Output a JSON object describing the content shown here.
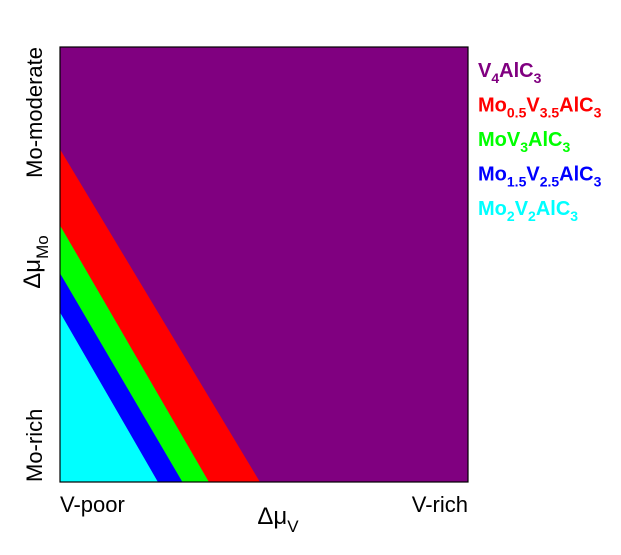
{
  "chart_data": {
    "type": "area",
    "x_axis": {
      "label": "Δμ",
      "label_subscript": "V",
      "range": [
        0,
        1
      ],
      "tick_labels": [
        "V-poor",
        "V-rich"
      ]
    },
    "y_axis": {
      "label": "Δμ",
      "label_subscript": "Mo",
      "range": [
        0,
        1
      ],
      "tick_labels": [
        "Mo-rich",
        "Mo-moderate"
      ]
    },
    "grid": false,
    "legend_position": "right",
    "background_phase": "V4AlC3",
    "series": [
      {
        "name": "V4AlC3",
        "color": "#800080",
        "label_parts": [
          {
            "t": "V",
            "sub": false
          },
          {
            "t": "4",
            "sub": true
          },
          {
            "t": "AlC",
            "sub": false
          },
          {
            "t": "3",
            "sub": true
          }
        ],
        "boundary": null
      },
      {
        "name": "Mo0.5V3.5AlC3",
        "color": "#ff0000",
        "label_parts": [
          {
            "t": "Mo",
            "sub": false
          },
          {
            "t": "0.5",
            "sub": true
          },
          {
            "t": "V",
            "sub": false
          },
          {
            "t": "3.5",
            "sub": true
          },
          {
            "t": "AlC",
            "sub": false
          },
          {
            "t": "3",
            "sub": true
          }
        ],
        "boundary": {
          "y_at_x0": 0.765,
          "x_at_y0": 0.49
        }
      },
      {
        "name": "MoV3AlC3",
        "color": "#00ff00",
        "label_parts": [
          {
            "t": "MoV",
            "sub": false
          },
          {
            "t": "3",
            "sub": true
          },
          {
            "t": "AlC",
            "sub": false
          },
          {
            "t": "3",
            "sub": true
          }
        ],
        "boundary": {
          "y_at_x0": 0.59,
          "x_at_y0": 0.365
        }
      },
      {
        "name": "Mo1.5V2.5AlC3",
        "color": "#0000ff",
        "label_parts": [
          {
            "t": "Mo",
            "sub": false
          },
          {
            "t": "1.5",
            "sub": true
          },
          {
            "t": "V",
            "sub": false
          },
          {
            "t": "2.5",
            "sub": true
          },
          {
            "t": "AlC",
            "sub": false
          },
          {
            "t": "3",
            "sub": true
          }
        ],
        "boundary": {
          "y_at_x0": 0.48,
          "x_at_y0": 0.3
        }
      },
      {
        "name": "Mo2V2AlC3",
        "color": "#00ffff",
        "label_parts": [
          {
            "t": "Mo",
            "sub": false
          },
          {
            "t": "2",
            "sub": true
          },
          {
            "t": "V",
            "sub": false
          },
          {
            "t": "2",
            "sub": true
          },
          {
            "t": "AlC",
            "sub": false
          },
          {
            "t": "3",
            "sub": true
          }
        ],
        "boundary": {
          "y_at_x0": 0.39,
          "x_at_y0": 0.24
        }
      }
    ]
  }
}
